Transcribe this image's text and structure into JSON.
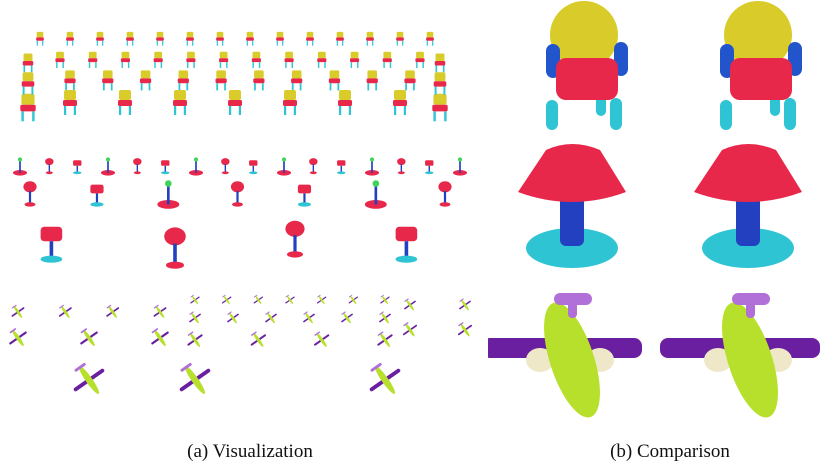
{
  "figure": {
    "captions": {
      "a": "(a) Visualization",
      "b": "(b) Comparison"
    },
    "colors": {
      "seat_red": "#e8284a",
      "chair_back_yellow": "#d9cc2a",
      "chair_leg_cyan": "#2ec4d4",
      "chair_arm_blue": "#2255cc",
      "lamp_shade_red": "#e8284a",
      "lamp_stem_blue": "#2240c0",
      "lamp_base_cyan": "#2ec4d4",
      "lamp_bulb_green": "#3ed45a",
      "plane_body_green": "#b6e02c",
      "plane_wing_purple": "#6a1fa0",
      "plane_tail_violet": "#b070d8",
      "plane_engine_cream": "#efe8c8"
    },
    "rows": [
      "chair",
      "lamp",
      "airplane"
    ]
  }
}
